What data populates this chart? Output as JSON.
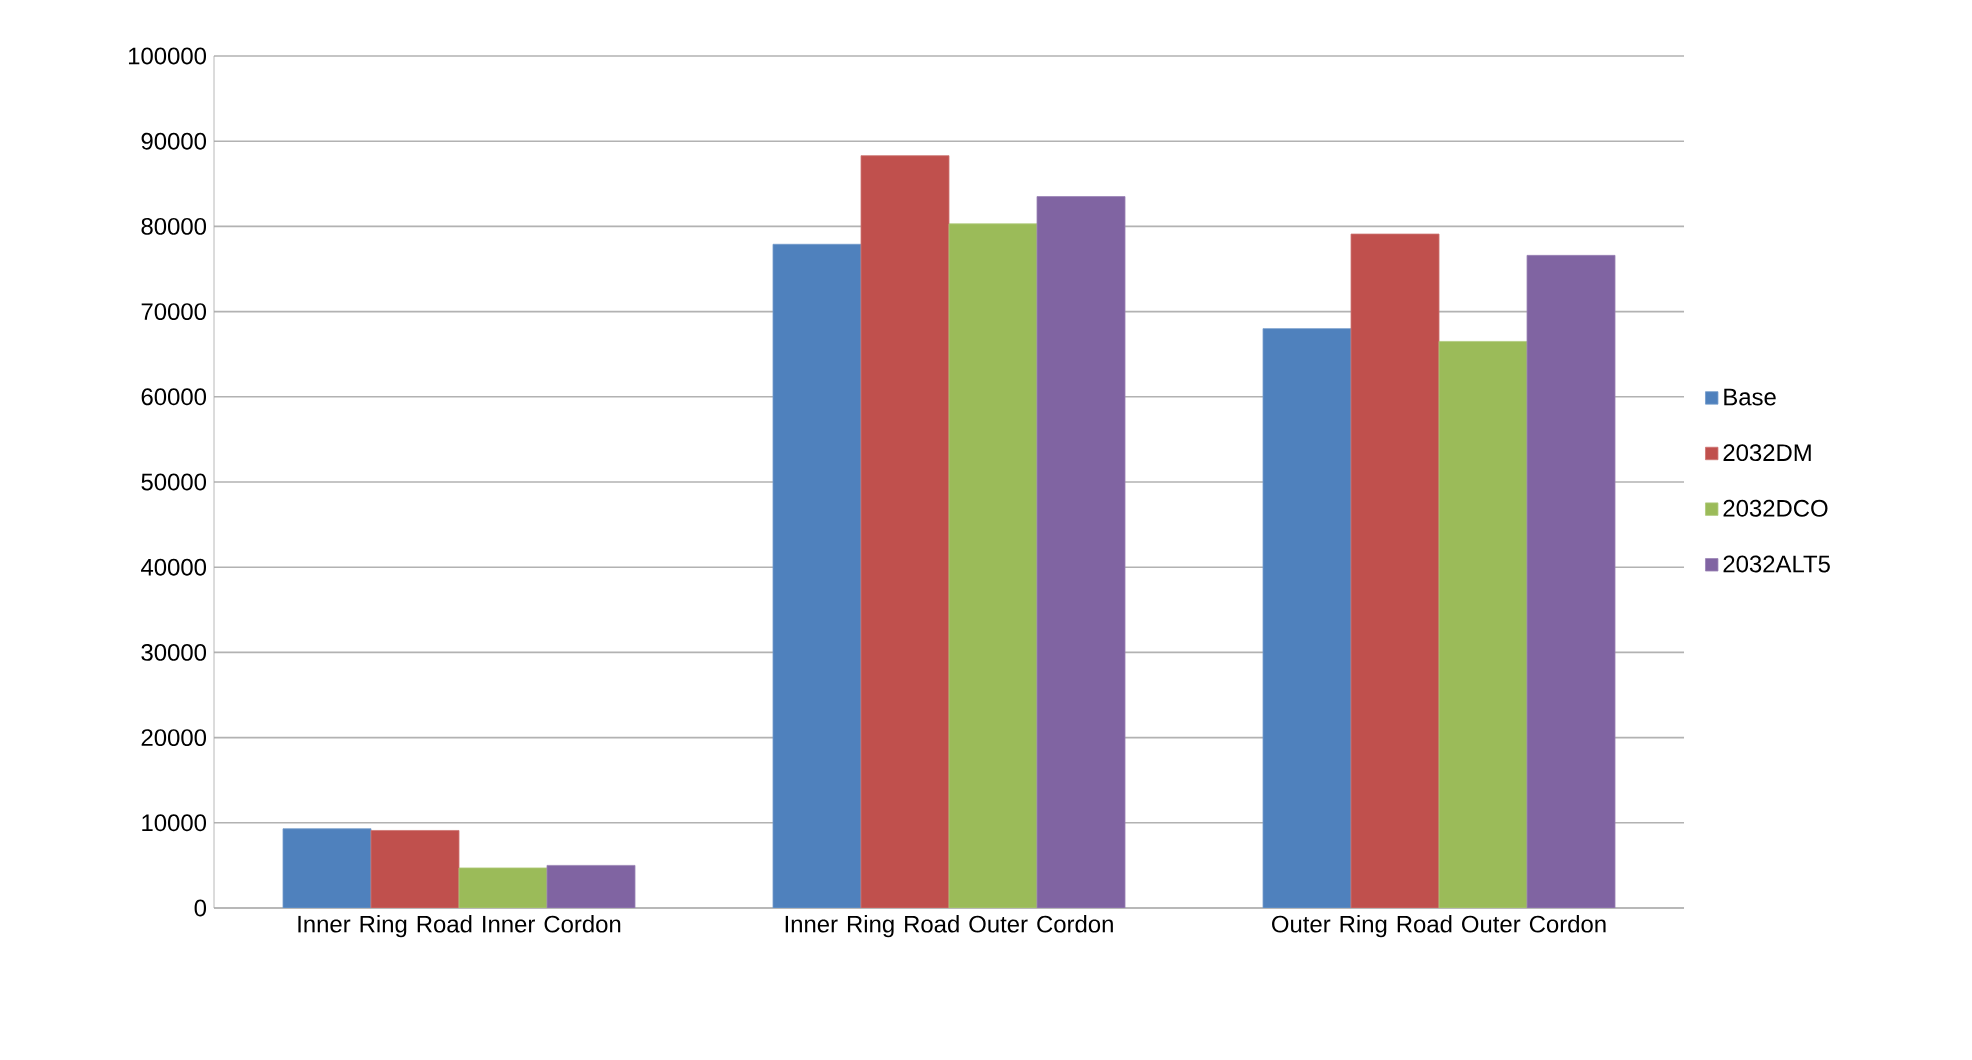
{
  "chart_data": {
    "type": "bar",
    "categories": [
      "Inner Ring Road Inner Cordon",
      "Inner Ring Road Outer Cordon",
      "Outer Ring Road Outer Cordon"
    ],
    "series": [
      {
        "name": "Base",
        "color": "#4f81bd",
        "values": [
          9300,
          77900,
          68000
        ]
      },
      {
        "name": "2032DM",
        "color": "#c0504d",
        "values": [
          9100,
          88300,
          79100
        ]
      },
      {
        "name": "2032DCO",
        "color": "#9bbb59",
        "values": [
          4700,
          80300,
          66500
        ]
      },
      {
        "name": "2032ALT5",
        "color": "#8064a2",
        "values": [
          5000,
          83500,
          76600
        ]
      }
    ],
    "ylim": [
      0,
      100000
    ],
    "yticks": [
      0,
      10000,
      20000,
      30000,
      40000,
      50000,
      60000,
      70000,
      80000,
      90000,
      100000
    ],
    "grid": "y",
    "legend": "right"
  }
}
